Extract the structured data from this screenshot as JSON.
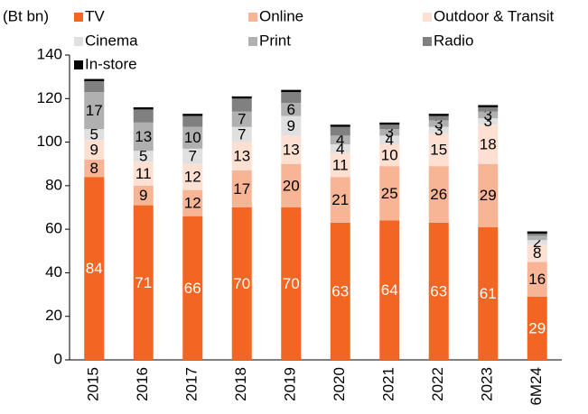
{
  "chart_data": {
    "type": "stacked_bar",
    "y_label": "(Bt bn)",
    "categories": [
      "2015",
      "2016",
      "2017",
      "2018",
      "2019",
      "2020",
      "2021",
      "2022",
      "2023",
      "6M24"
    ],
    "series": [
      {
        "name": "TV",
        "color": "#f26522",
        "values": [
          84,
          71,
          66,
          70,
          70,
          63,
          64,
          63,
          61,
          29
        ],
        "value_labels": [
          "84",
          "71",
          "66",
          "70",
          "70",
          "63",
          "64",
          "63",
          "61",
          "29"
        ]
      },
      {
        "name": "Online",
        "color": "#f8b595",
        "values": [
          8,
          9,
          12,
          17,
          20,
          21,
          25,
          26,
          29,
          16
        ],
        "value_labels": [
          "8",
          "9",
          "12",
          "17",
          "20",
          "21",
          "25",
          "26",
          "29",
          "16"
        ]
      },
      {
        "name": "Outdoor & Transit",
        "color": "#fde0d2",
        "values": [
          9,
          11,
          12,
          13,
          13,
          11,
          10,
          15,
          18,
          8
        ],
        "value_labels": [
          "9",
          "11",
          "12",
          "13",
          "13",
          "11",
          "10",
          "15",
          "18",
          "8"
        ]
      },
      {
        "name": "Cinema",
        "color": "#e0e0e0",
        "values": [
          5,
          5,
          7,
          7,
          9,
          4,
          4,
          3,
          3,
          2
        ],
        "value_labels": [
          "5",
          "5",
          "7",
          "7",
          "9",
          "4",
          "4",
          "3",
          "3",
          "2"
        ]
      },
      {
        "name": "Print",
        "color": "#b0b0b0",
        "values": [
          17,
          13,
          10,
          7,
          6,
          4,
          3,
          3,
          3,
          2
        ],
        "value_labels": [
          "17",
          "13",
          "10",
          "7",
          "6",
          "4",
          "3",
          "3",
          "3",
          null
        ]
      },
      {
        "name": "Radio",
        "color": "#808080",
        "values": [
          5,
          6,
          5,
          6,
          5,
          4,
          2,
          2,
          2,
          1
        ]
      },
      {
        "name": "In-store",
        "color": "#000000",
        "values": [
          1,
          1,
          1,
          1,
          1,
          1,
          1,
          1,
          1,
          1
        ]
      }
    ],
    "ylim": [
      0,
      140
    ],
    "yticks": [
      0,
      20,
      40,
      60,
      80,
      100,
      120,
      140
    ]
  }
}
